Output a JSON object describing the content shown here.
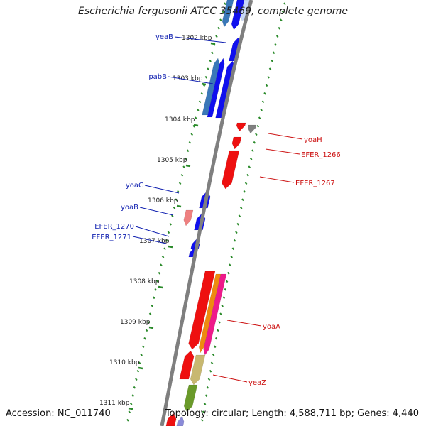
{
  "title": "Escherichia fergusonii ATCC 35469, complete genome",
  "footer": {
    "accession": "Accession: NC_011740",
    "topology": "Topology: circular; Length: 4,588,711 bp; Genes: 4,440"
  },
  "colors": {
    "backbone": "#7f7f7f",
    "tick": "#2a8a2a",
    "label_forward": "#1020b0",
    "label_reverse": "#cc1010",
    "gene_blue": "#1010ee",
    "gene_steel": "#3a78b8",
    "gene_red": "#ee1010",
    "gene_pink": "#ee8080",
    "gene_gray": "#808080",
    "gene_orange": "#ee8a10",
    "gene_magenta": "#ee1a8a",
    "gene_khaki": "#c8b870",
    "gene_olive": "#6a9a2a"
  },
  "ticks": [
    {
      "label": "1302 kbp"
    },
    {
      "label": "1303 kbp"
    },
    {
      "label": "1304 kbp"
    },
    {
      "label": "1305 kbp"
    },
    {
      "label": "1306 kbp"
    },
    {
      "label": "1307 kbp"
    },
    {
      "label": "1308 kbp"
    },
    {
      "label": "1309 kbp"
    },
    {
      "label": "1310 kbp"
    },
    {
      "label": "1311 kbp"
    }
  ],
  "forward_labels": [
    {
      "name": "yeaB"
    },
    {
      "name": "pabB"
    },
    {
      "name": "yoaC"
    },
    {
      "name": "yoaB"
    },
    {
      "name": "EFER_1270"
    },
    {
      "name": "EFER_1271"
    }
  ],
  "reverse_labels": [
    {
      "name": "yoaH"
    },
    {
      "name": "EFER_1266"
    },
    {
      "name": "EFER_1267"
    },
    {
      "name": "yoaA"
    },
    {
      "name": "yeaZ"
    }
  ]
}
